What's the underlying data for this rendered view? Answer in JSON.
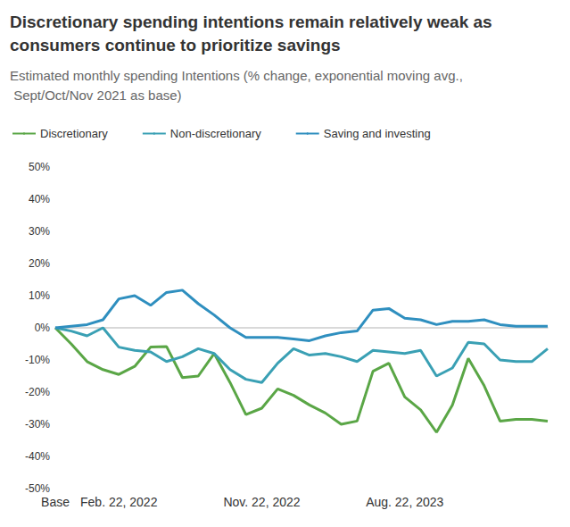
{
  "chart_data": {
    "type": "line",
    "title": "Discretionary spending intentions remain relatively weak as consumers continue to prioritize savings",
    "subtitle": "Estimated monthly spending Intentions (% change, exponential moving avg., Sept/Oct/Nov 2021 as base)",
    "categories": [
      "Base",
      null,
      null,
      null,
      "Feb. 22, 2022",
      null,
      null,
      null,
      null,
      null,
      null,
      null,
      null,
      "Nov. 22, 2022",
      null,
      null,
      null,
      null,
      null,
      null,
      null,
      null,
      "Aug. 22, 2023",
      null,
      null,
      null,
      null,
      null,
      null,
      null,
      null,
      null
    ],
    "series": [
      {
        "name": "Discretionary",
        "color": "#5aa646",
        "values": [
          0,
          -5,
          -10.5,
          -13,
          -14.5,
          -12,
          -6,
          -5.8,
          -15.5,
          -15,
          -8,
          -17,
          -27,
          -25,
          -19,
          -21,
          -24,
          -26.5,
          -30,
          -29,
          -13.5,
          -11,
          -21.5,
          -25.5,
          -32.5,
          -24,
          -9.5,
          -18,
          -29,
          -28.5,
          -28.5,
          -29
        ]
      },
      {
        "name": "Non-discretionary",
        "color": "#3aa0b4",
        "values": [
          0,
          -1,
          -2.5,
          0,
          -6,
          -7,
          -7.5,
          -10.5,
          -9,
          -6.5,
          -8,
          -13,
          -16,
          -17,
          -11,
          -6.5,
          -8.5,
          -8,
          -9,
          -10.5,
          -7,
          -7.5,
          -8,
          -7,
          -15,
          -12.5,
          -4.5,
          -5,
          -10,
          -10.5,
          -10.5,
          -6.5
        ]
      },
      {
        "name": "Saving and investing",
        "color": "#2f8fbf",
        "values": [
          0,
          0.5,
          1,
          2.5,
          9,
          10,
          7,
          11,
          11.7,
          7.5,
          4,
          0,
          -3,
          -3,
          -3,
          -3.5,
          -4,
          -2.5,
          -1.5,
          -1,
          5.5,
          6,
          3,
          2.5,
          1,
          2,
          2,
          2.5,
          1,
          0.5,
          0.5,
          0.5
        ]
      }
    ],
    "ylim": [
      -50,
      50
    ],
    "yticks": [
      {
        "value": -50,
        "label": "-50%"
      },
      {
        "value": -40,
        "label": "-40%"
      },
      {
        "value": -30,
        "label": "-30%"
      },
      {
        "value": -20,
        "label": "-20%"
      },
      {
        "value": -10,
        "label": "-10%"
      },
      {
        "value": 0,
        "label": "0%"
      },
      {
        "value": 10,
        "label": "10%"
      },
      {
        "value": 20,
        "label": "20%"
      },
      {
        "value": 30,
        "label": "30%"
      },
      {
        "value": 40,
        "label": "40%"
      },
      {
        "value": 50,
        "label": "50%"
      }
    ],
    "grid": false,
    "legend": "top-left"
  }
}
